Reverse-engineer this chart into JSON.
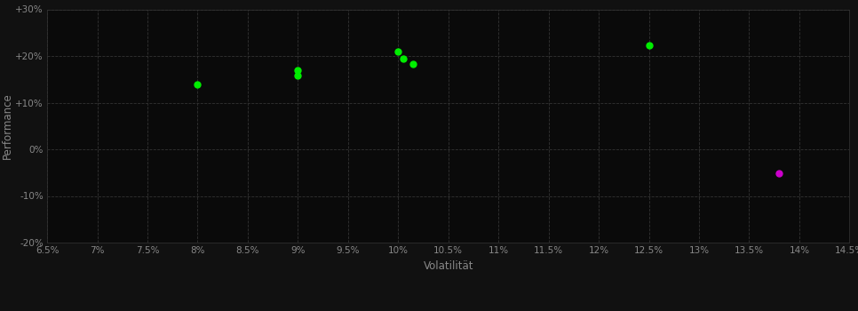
{
  "background_color": "#111111",
  "plot_bg_color": "#0a0a0a",
  "grid_color": "#333333",
  "text_color": "#888888",
  "xlabel": "Volatilität",
  "ylabel": "Performance",
  "xlim": [
    0.065,
    0.145
  ],
  "ylim": [
    -0.2,
    0.3
  ],
  "xticks": [
    0.065,
    0.07,
    0.075,
    0.08,
    0.085,
    0.09,
    0.095,
    0.1,
    0.105,
    0.11,
    0.115,
    0.12,
    0.125,
    0.13,
    0.135,
    0.14,
    0.145
  ],
  "yticks": [
    -0.2,
    -0.1,
    0.0,
    0.1,
    0.2,
    0.3
  ],
  "green_points": [
    [
      0.08,
      0.14
    ],
    [
      0.09,
      0.17
    ],
    [
      0.09,
      0.158
    ],
    [
      0.1,
      0.21
    ],
    [
      0.1005,
      0.195
    ],
    [
      0.1015,
      0.183
    ],
    [
      0.125,
      0.222
    ]
  ],
  "magenta_points": [
    [
      0.138,
      -0.052
    ]
  ],
  "green_color": "#00ee00",
  "magenta_color": "#cc00cc",
  "marker_size": 5
}
